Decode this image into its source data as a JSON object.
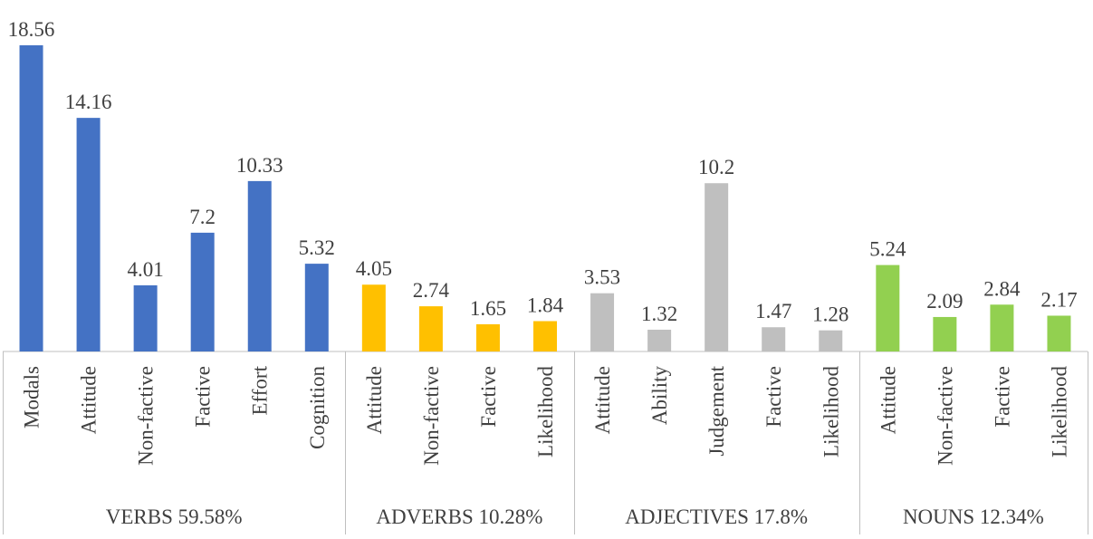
{
  "chart_data": {
    "type": "bar",
    "title": "",
    "xlabel": "",
    "ylabel": "",
    "ylim": [
      0,
      18.56
    ],
    "grid": false,
    "groups": [
      {
        "label": "VERBS 59.58%",
        "color": "#4472c4",
        "categories": [
          "Modals",
          "Attitude",
          "Non-factive",
          "Factive",
          "Effort",
          "Cognition"
        ],
        "values": [
          18.56,
          14.16,
          4.01,
          7.2,
          10.33,
          5.32
        ],
        "value_labels": [
          "18.56",
          "14.16",
          "4.01",
          "7.2",
          "10.33",
          "5.32"
        ]
      },
      {
        "label": "ADVERBS 10.28%",
        "color": "#ffc000",
        "categories": [
          "Attitude",
          "Non-factive",
          "Factive",
          "Likelihood"
        ],
        "values": [
          4.05,
          2.74,
          1.65,
          1.84
        ],
        "value_labels": [
          "4.05",
          "2.74",
          "1.65",
          "1.84"
        ]
      },
      {
        "label": "ADJECTIVES 17.8%",
        "color": "#bfbfbf",
        "categories": [
          "Attitude",
          "Ability",
          "Judgement",
          "Factive",
          "Likelihood"
        ],
        "values": [
          3.53,
          1.32,
          10.2,
          1.47,
          1.28
        ],
        "value_labels": [
          "3.53",
          "1.32",
          "10.2",
          "1.47",
          "1.28"
        ]
      },
      {
        "label": "NOUNS 12.34%",
        "color": "#92d050",
        "categories": [
          "Attitude",
          "Non-factive",
          "Factive",
          "Likelihood"
        ],
        "values": [
          5.24,
          2.09,
          2.84,
          2.17
        ],
        "value_labels": [
          "5.24",
          "2.09",
          "2.84",
          "2.17"
        ]
      }
    ]
  }
}
